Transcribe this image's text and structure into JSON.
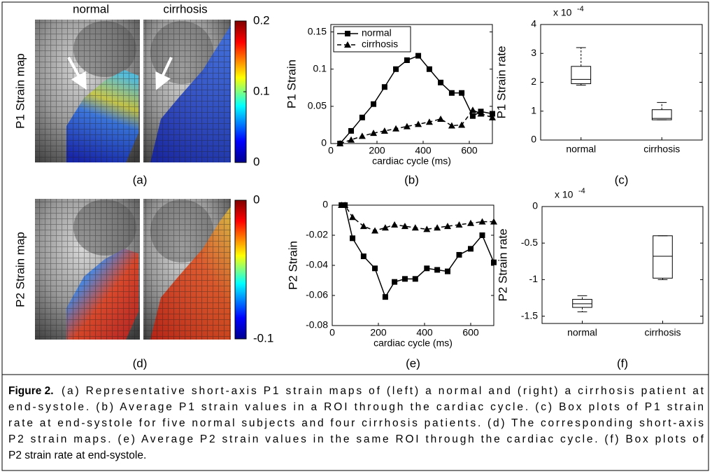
{
  "panels": [
    {
      "columns": [
        "normal",
        "cirrhosis"
      ],
      "ylabel": "P1 Strain map",
      "label": "(a)",
      "colorbar": {
        "lim": [
          0,
          0.2
        ],
        "ticks": [
          0,
          0.1,
          0.2
        ]
      }
    },
    {
      "ylabel": "P2 Strain map",
      "label": "(d)",
      "colorbar": {
        "lim": [
          -0.1,
          0
        ],
        "ticks": [
          -0.1,
          0
        ]
      }
    }
  ],
  "chart_data": [
    {
      "type": "line",
      "panel": "(b)",
      "ylabel": "P1 Strain",
      "xlabel": "cardiac cycle (ms)",
      "x": [
        40,
        88,
        136,
        185,
        233,
        282,
        330,
        379,
        427,
        476,
        524,
        567,
        615,
        650,
        700
      ],
      "series": [
        {
          "name": "normal",
          "color": "#000000",
          "marker": "square",
          "dashed": false,
          "values": [
            0,
            0.017,
            0.035,
            0.053,
            0.076,
            0.1,
            0.112,
            0.118,
            0.1,
            0.082,
            0.068,
            0.068,
            0.037,
            0.043,
            0.04
          ]
        },
        {
          "name": "cirrhosis",
          "color": "#000000",
          "marker": "triangle",
          "dashed": true,
          "values": [
            0,
            0.005,
            0.01,
            0.014,
            0.017,
            0.02,
            0.023,
            0.026,
            0.029,
            0.033,
            0.024,
            0.025,
            0.045,
            0.04,
            0.035
          ]
        }
      ],
      "xlim": [
        0,
        700
      ],
      "xticks": [
        0,
        200,
        400,
        600
      ],
      "ylim": [
        0,
        0.16
      ],
      "yticks": [
        0,
        0.05,
        0.1,
        0.15
      ],
      "legend": "upper left"
    },
    {
      "type": "box",
      "panel": "(c)",
      "ylabel": "P1 Strain rate",
      "scale_base": "x 10",
      "scale_exponent": "-4",
      "categories": [
        "normal",
        "cirrhosis"
      ],
      "boxes": [
        {
          "min": 1.9,
          "q1": 1.95,
          "median": 2.1,
          "q3": 2.55,
          "max": 3.2
        },
        {
          "min": 0.7,
          "q1": 0.7,
          "median": 0.75,
          "q3": 1.05,
          "max": 1.3
        }
      ],
      "color": "#000000",
      "ylim": [
        0,
        4
      ],
      "yticks": [
        0,
        1,
        2,
        3,
        4
      ]
    },
    {
      "type": "line",
      "panel": "(e)",
      "ylabel": "P2 Strain",
      "xlabel": "cardiac cycle (ms)",
      "x": [
        40,
        55,
        88,
        136,
        185,
        230,
        270,
        315,
        360,
        410,
        455,
        500,
        550,
        600,
        650,
        700
      ],
      "series": [
        {
          "name": "normal",
          "color": "#000000",
          "marker": "square",
          "dashed": false,
          "values": [
            0,
            0,
            -0.022,
            -0.034,
            -0.042,
            -0.061,
            -0.051,
            -0.049,
            -0.049,
            -0.042,
            -0.043,
            -0.044,
            -0.033,
            -0.029,
            -0.02,
            -0.038
          ]
        },
        {
          "name": "cirrhosis",
          "color": "#000000",
          "marker": "triangle",
          "dashed": true,
          "values": [
            0,
            0,
            -0.008,
            -0.014,
            -0.017,
            -0.015,
            -0.013,
            -0.014,
            -0.015,
            -0.016,
            -0.015,
            -0.014,
            -0.013,
            -0.012,
            -0.011,
            -0.011
          ]
        }
      ],
      "xlim": [
        0,
        700
      ],
      "xticks": [
        0,
        200,
        400,
        600
      ],
      "ylim": [
        -0.08,
        0
      ],
      "yticks": [
        -0.08,
        -0.06,
        -0.04,
        -0.02,
        0
      ]
    },
    {
      "type": "box",
      "panel": "(f)",
      "ylabel": "P2 Strain rate",
      "scale_base": "x 10",
      "scale_exponent": "-4",
      "categories": [
        "normal",
        "cirrhosis"
      ],
      "boxes": [
        {
          "min": -1.44,
          "q1": -1.38,
          "median": -1.33,
          "q3": -1.27,
          "max": -1.22
        },
        {
          "min": -1.0,
          "q1": -0.98,
          "median": -0.68,
          "q3": -0.4,
          "max": -0.4
        }
      ],
      "color": "#000000",
      "ylim": [
        -1.6,
        0
      ],
      "yticks": [
        -1.5,
        -1,
        -0.5,
        0
      ]
    }
  ],
  "caption": {
    "label": "Figure 2.",
    "lines": [
      "(a) Representative short-axis P1 strain maps of (left) a normal and (right) a cirrhosis patient at",
      "end-systole. (b) Average P1 strain values in a ROI through the cardiac cycle. (c) Box plots of P1 strain",
      "rate at end-systole for five normal subjects and four cirrhosis patients. (d) The corresponding short-axis",
      "P2 strain maps. (e) Average P2 strain values in the same ROI through the cardiac cycle. (f) Box plots of",
      "P2 strain rate at end-systole."
    ]
  }
}
